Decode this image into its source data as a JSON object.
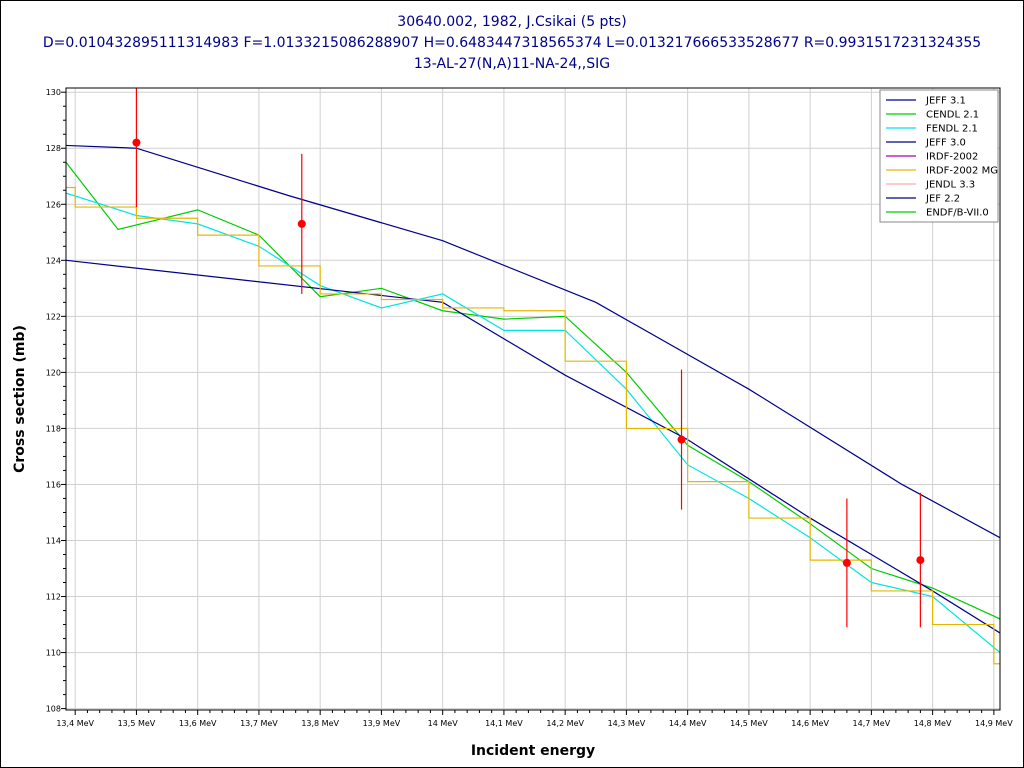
{
  "titles": {
    "line1": "30640.002, 1982, J.Csikai (5 pts)",
    "line2": "D=0.010432895111314983 F=1.0133215086288907 H=0.6483447318565374 L=0.013217666533528677 R=0.9931517231324355",
    "line3": "13-AL-27(N,A)11-NA-24,,SIG"
  },
  "chart_data": {
    "type": "line",
    "xlabel": "Incident energy",
    "ylabel": "Cross section (mb)",
    "xlim": [
      13.385,
      14.91
    ],
    "ylim": [
      107.95,
      130.15
    ],
    "x_ticks": [
      13.4,
      13.5,
      13.6,
      13.7,
      13.8,
      13.9,
      14.0,
      14.1,
      14.2,
      14.3,
      14.4,
      14.5,
      14.6,
      14.7,
      14.8,
      14.9
    ],
    "x_tick_labels": [
      "13,4 MeV",
      "13,5 MeV",
      "13,6 MeV",
      "13,7 MeV",
      "13,8 MeV",
      "13,9 MeV",
      "14 MeV",
      "14,1 MeV",
      "14,2 MeV",
      "14,3 MeV",
      "14,4 MeV",
      "14,5 MeV",
      "14,6 MeV",
      "14,7 MeV",
      "14,8 MeV",
      "14,9 MeV"
    ],
    "y_ticks": [
      108,
      110,
      112,
      114,
      116,
      118,
      120,
      122,
      124,
      126,
      128,
      130
    ],
    "y_tick_labels": [
      "108",
      "110",
      "112",
      "114",
      "116",
      "118",
      "120",
      "122",
      "124",
      "126",
      "128",
      "130"
    ],
    "grid": true,
    "legend_position": "top-right",
    "series": [
      {
        "name": "JEFF 3.1",
        "color": "#00008b",
        "style": "line",
        "x": [
          13.385,
          13.5,
          13.75,
          14.0,
          14.25,
          14.5,
          14.75,
          14.91
        ],
        "y": [
          128.1,
          128.0,
          126.3,
          124.7,
          122.5,
          119.4,
          116.0,
          114.1
        ]
      },
      {
        "name": "CENDL 2.1",
        "color": "#00cc00",
        "style": "line",
        "x": [
          13.385,
          13.47,
          13.6,
          13.7,
          13.8,
          13.9,
          14.0,
          14.1,
          14.2,
          14.3,
          14.4,
          14.5,
          14.6,
          14.7,
          14.8,
          14.91
        ],
        "y": [
          127.5,
          125.1,
          125.8,
          124.9,
          122.7,
          123.0,
          122.2,
          121.9,
          122.0,
          120.0,
          117.4,
          116.1,
          114.6,
          113.0,
          112.3,
          111.2
        ]
      },
      {
        "name": "FENDL 2.1",
        "color": "#00e5e5",
        "style": "line",
        "x": [
          13.385,
          13.5,
          13.6,
          13.7,
          13.8,
          13.9,
          14.0,
          14.1,
          14.2,
          14.3,
          14.4,
          14.5,
          14.6,
          14.7,
          14.8,
          14.91
        ],
        "y": [
          126.4,
          125.6,
          125.3,
          124.5,
          123.1,
          122.3,
          122.8,
          121.5,
          121.5,
          119.4,
          116.7,
          115.5,
          114.1,
          112.5,
          112.0,
          110.0
        ]
      },
      {
        "name": "JEFF 3.0",
        "color": "#00008b",
        "style": "line",
        "x": [
          13.385,
          14.0,
          14.2,
          14.4,
          14.6,
          14.8,
          14.91
        ],
        "y": [
          124.0,
          122.5,
          119.9,
          117.6,
          114.8,
          112.2,
          110.7
        ]
      },
      {
        "name": "IRDF-2002",
        "color": "#aa00aa",
        "style": "line",
        "x": [],
        "y": []
      },
      {
        "name": "IRDF-2002 MG",
        "color": "#e5b800",
        "style": "step",
        "x": [
          13.385,
          13.4,
          13.5,
          13.6,
          13.7,
          13.8,
          13.9,
          14.0,
          14.1,
          14.2,
          14.3,
          14.4,
          14.5,
          14.6,
          14.7,
          14.8,
          14.9,
          14.91
        ],
        "y": [
          126.6,
          125.9,
          125.5,
          124.9,
          123.8,
          122.8,
          122.6,
          122.3,
          122.2,
          120.4,
          118.0,
          116.1,
          114.8,
          113.3,
          112.2,
          111.0,
          109.6,
          109.6
        ]
      },
      {
        "name": "JENDL 3.3",
        "color": "#ffaaaa",
        "style": "line",
        "x": [],
        "y": []
      },
      {
        "name": "JEF 2.2",
        "color": "#00008b",
        "style": "line",
        "x": [],
        "y": []
      },
      {
        "name": "ENDF/B-VII.0",
        "color": "#00cc00",
        "style": "line",
        "x": [],
        "y": []
      }
    ],
    "experimental": {
      "color": "#ff0000",
      "x": [
        13.5,
        13.77,
        14.39,
        14.66,
        14.78
      ],
      "y": [
        128.2,
        125.3,
        117.6,
        113.2,
        113.3
      ],
      "err_low": [
        2.3,
        2.5,
        2.5,
        2.3,
        2.4
      ],
      "err_high": [
        2.3,
        2.5,
        2.5,
        2.3,
        2.4
      ]
    }
  }
}
